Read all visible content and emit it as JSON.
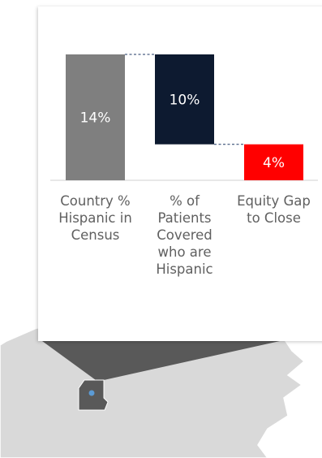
{
  "chart_data": {
    "type": "waterfall",
    "categories": [
      "Country % Hispanic in Census",
      "% of Patients Covered who are Hispanic",
      "Equity Gap to Close"
    ],
    "values": [
      14,
      10,
      4
    ],
    "value_labels": [
      "14%",
      "10%",
      "4%"
    ],
    "ylim": [
      0,
      14
    ],
    "grid": false,
    "legend": "none",
    "colors": {
      "census": "#7f7f7f",
      "covered": "#0d1a30",
      "gap": "#ff0000",
      "connector": "#1f3864",
      "axis": "#d0d0d0",
      "label": "#606060"
    }
  },
  "map": {
    "marker_color": "#5b9bd5",
    "region_color": "#595959",
    "land_color": "#d9d9d9"
  }
}
